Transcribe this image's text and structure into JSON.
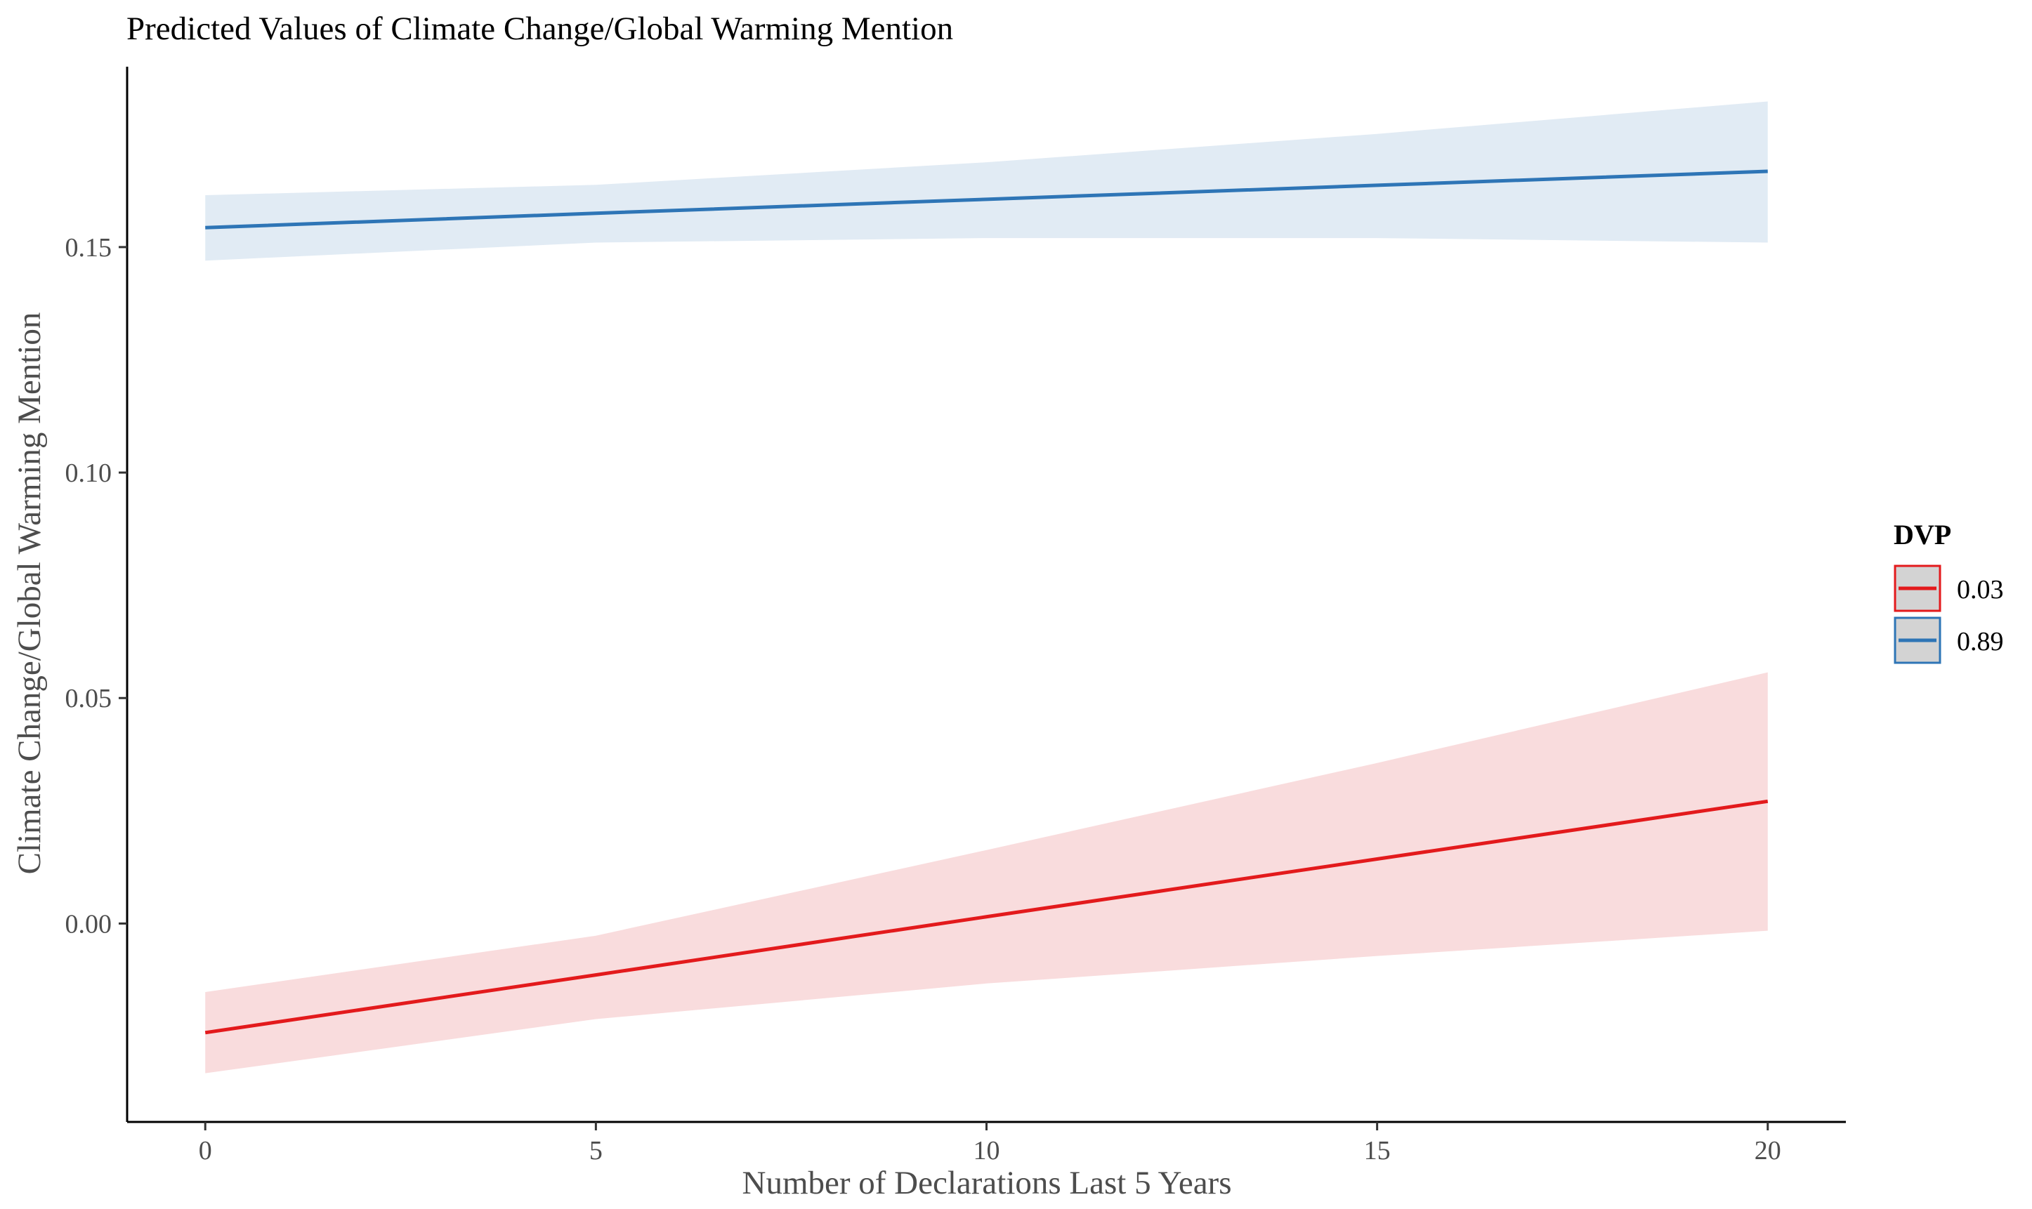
{
  "chart_data": {
    "type": "line",
    "title": "Predicted Values of Climate Change/Global Warming Mention",
    "xlabel": "Number of Declarations Last 5 Years",
    "ylabel": "Climate Change/Global Warming Mention",
    "xlim": [
      -1,
      21
    ],
    "ylim": [
      -0.044,
      0.19
    ],
    "x_ticks": [
      0,
      5,
      10,
      15,
      20
    ],
    "x_tick_labels": [
      "0",
      "5",
      "10",
      "15",
      "20"
    ],
    "y_ticks": [
      0.0,
      0.05,
      0.1,
      0.15
    ],
    "y_tick_labels": [
      "0.00",
      "0.05",
      "0.10",
      "0.15"
    ],
    "grid": false,
    "legend": {
      "title": "DVP",
      "position": "right"
    },
    "series": [
      {
        "name": "0.03",
        "color": "#e31a1c",
        "fill": "#f9dcdd",
        "x": [
          0,
          5,
          10,
          15,
          20
        ],
        "y": [
          -0.0242,
          -0.0114,
          0.0015,
          0.0143,
          0.0271
        ],
        "ci_low": [
          -0.0332,
          -0.0212,
          -0.0133,
          -0.0072,
          -0.0016
        ],
        "ci_high": [
          -0.0152,
          -0.0027,
          0.0163,
          0.0356,
          0.0557
        ]
      },
      {
        "name": "0.89",
        "color": "#2e75b6",
        "fill": "#e1ebf4",
        "x": [
          0,
          5,
          10,
          15,
          20
        ],
        "y": [
          0.1543,
          0.1575,
          0.1606,
          0.1637,
          0.1668
        ],
        "ci_low": [
          0.147,
          0.151,
          0.152,
          0.152,
          0.151
        ],
        "ci_high": [
          0.1615,
          0.1638,
          0.1688,
          0.1751,
          0.1823
        ]
      }
    ]
  }
}
